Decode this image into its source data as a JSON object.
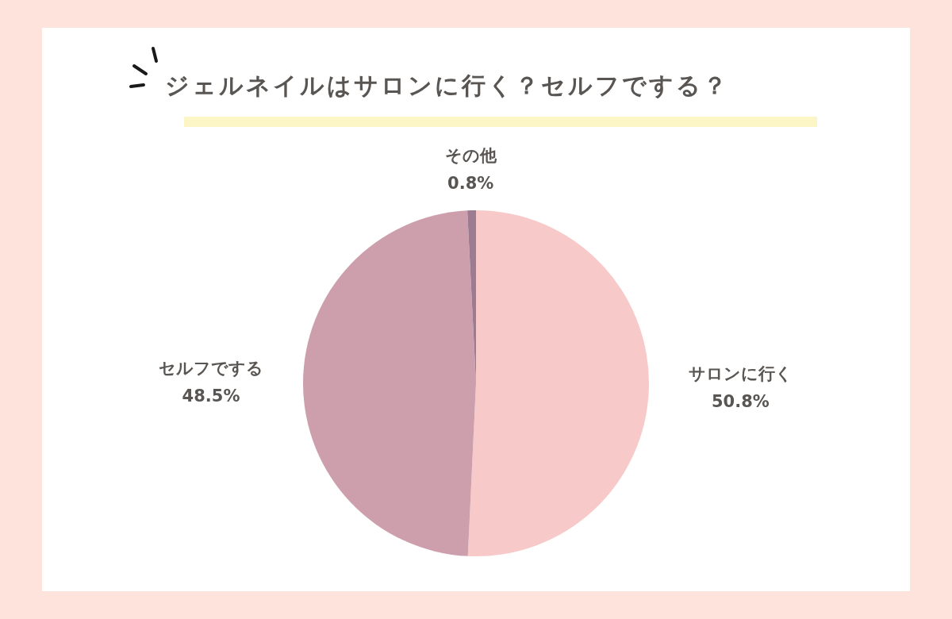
{
  "chart_data": {
    "type": "pie",
    "title": "ジェルネイルはサロンに行く？セルフでする？",
    "categories": [
      "サロンに行く",
      "セルフでする",
      "その他"
    ],
    "values": [
      50.8,
      48.5,
      0.8
    ],
    "colors": [
      "#f8c9c9",
      "#cd9fad",
      "#9d7b91"
    ],
    "value_labels": [
      "50.8%",
      "48.5%",
      "0.8%"
    ]
  }
}
